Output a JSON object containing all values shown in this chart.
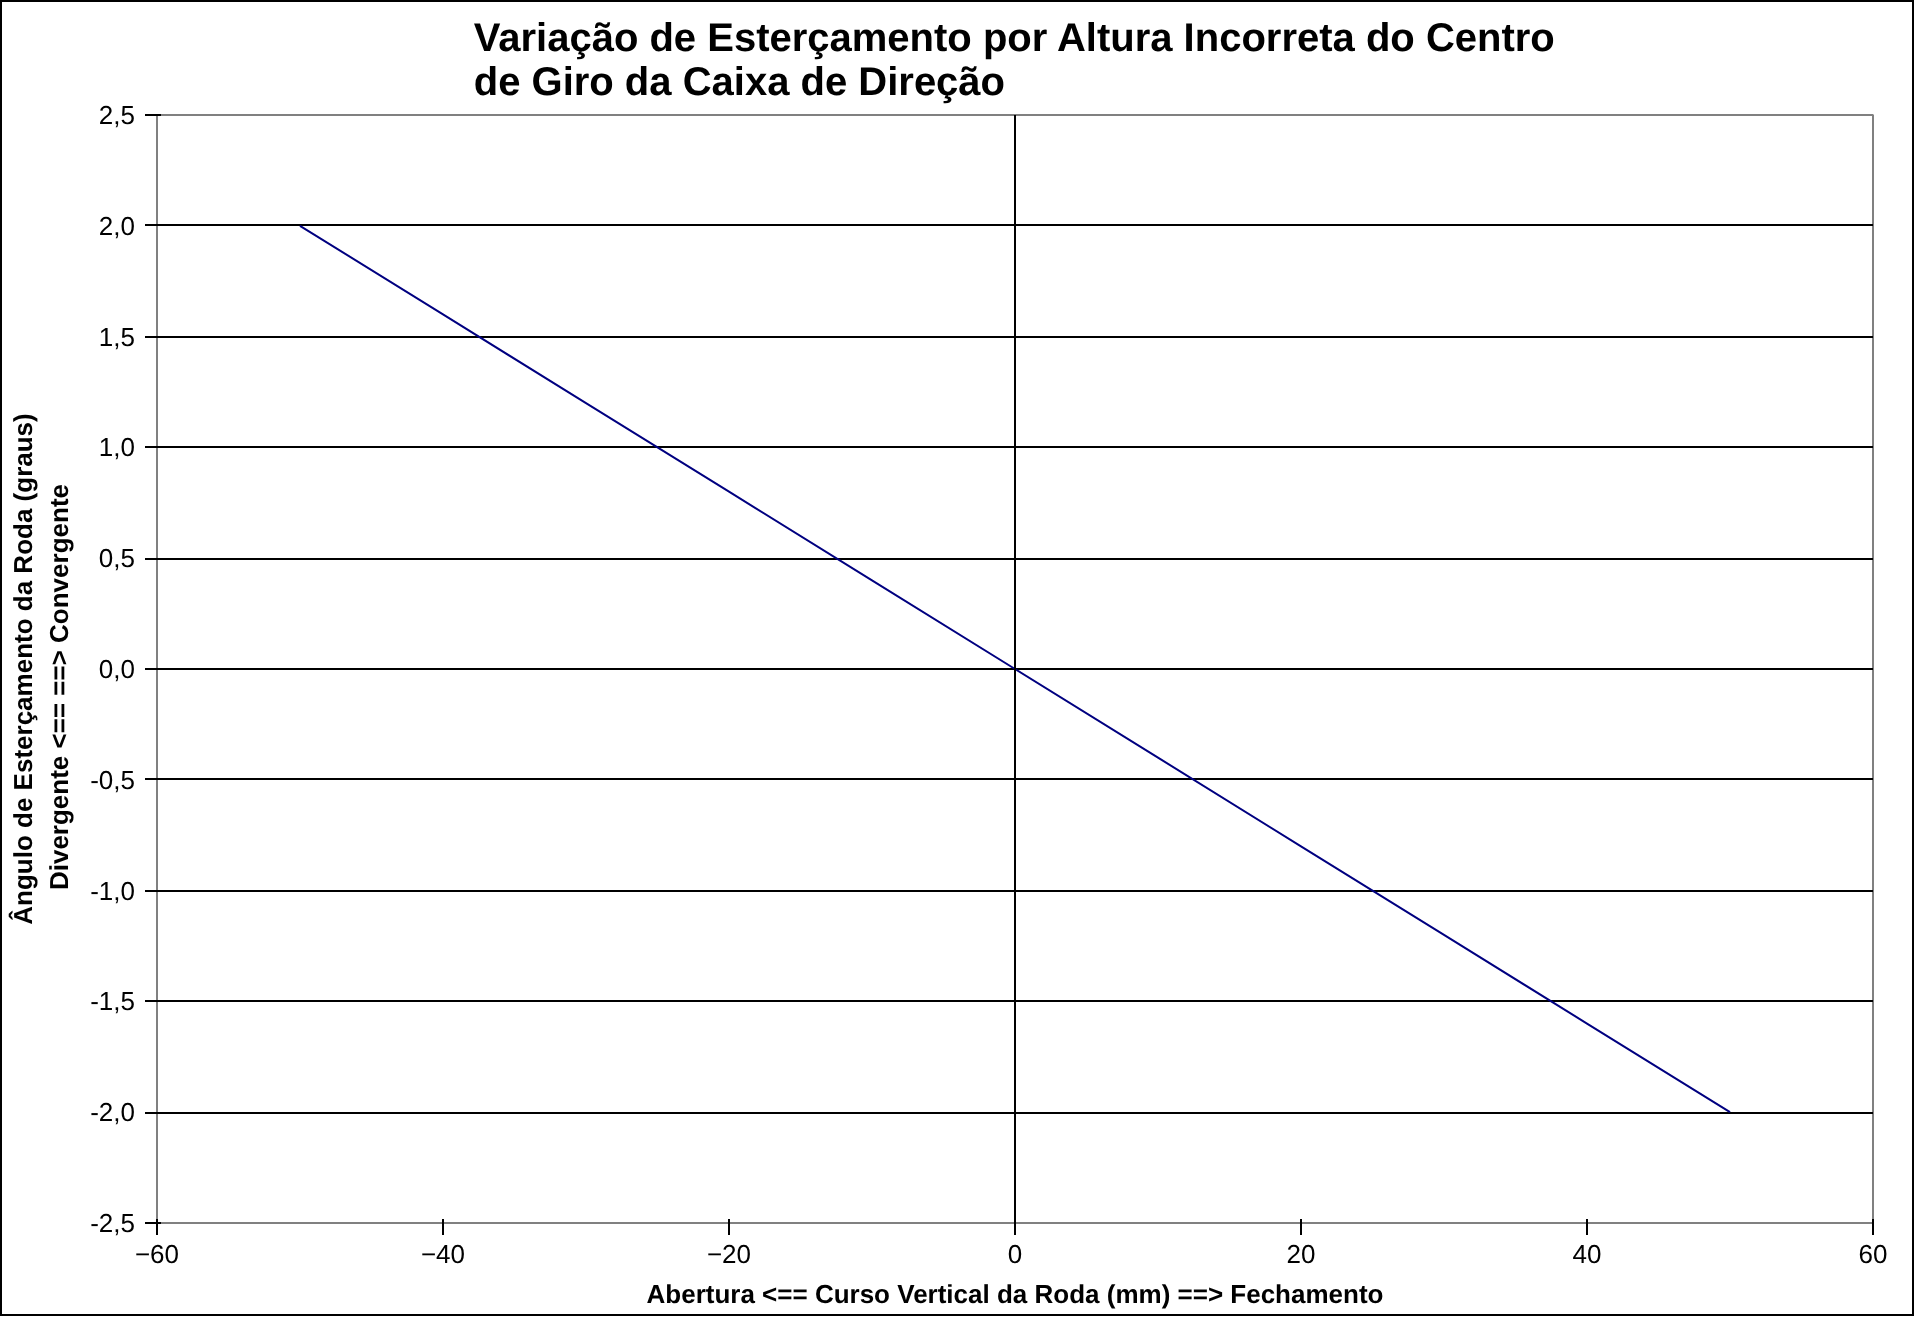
{
  "chart_data": {
    "type": "line",
    "title": "Variação de Esterçamento por Altura Incorreta do Centro\nde Giro da Caixa de Direção",
    "xlabel": "Abertura <== Curso Vertical da Roda (mm) ==> Fechamento",
    "ylabel": "Ângulo de Esterçamento da Roda (graus)\nDivergente <==      ==> Convergente",
    "x": [
      -50,
      -40,
      -30,
      -20,
      -10,
      0,
      10,
      20,
      30,
      40,
      50
    ],
    "series": [
      {
        "color": "#000080",
        "values": [
          2.0,
          1.6,
          1.2,
          0.8,
          0.4,
          0.0,
          -0.4,
          -0.8,
          -1.2,
          -1.6,
          -2.0
        ]
      }
    ],
    "xlim": [
      -60,
      60
    ],
    "xticks": [
      -60,
      -40,
      -20,
      0,
      20,
      40,
      60
    ],
    "ylim": [
      -2.5,
      2.5
    ],
    "yticks": [
      {
        "value": -2.5,
        "label": "-2,5"
      },
      {
        "value": -2,
        "label": "-2,0"
      },
      {
        "value": -1.5,
        "label": "-1,5"
      },
      {
        "value": -1,
        "label": "-1,0"
      },
      {
        "value": -0.5,
        "label": "-0,5"
      },
      {
        "value": 0,
        "label": "0,0"
      },
      {
        "value": 0.5,
        "label": "0,5"
      },
      {
        "value": 1,
        "label": "1,0"
      },
      {
        "value": 1.5,
        "label": "1,5"
      },
      {
        "value": 2,
        "label": "2,0"
      },
      {
        "value": 2.5,
        "label": "2,5"
      }
    ],
    "ref_lines": [
      {
        "axis": "x",
        "value": 0
      }
    ],
    "grid": "y",
    "marker": "none",
    "line_style": "solid"
  }
}
